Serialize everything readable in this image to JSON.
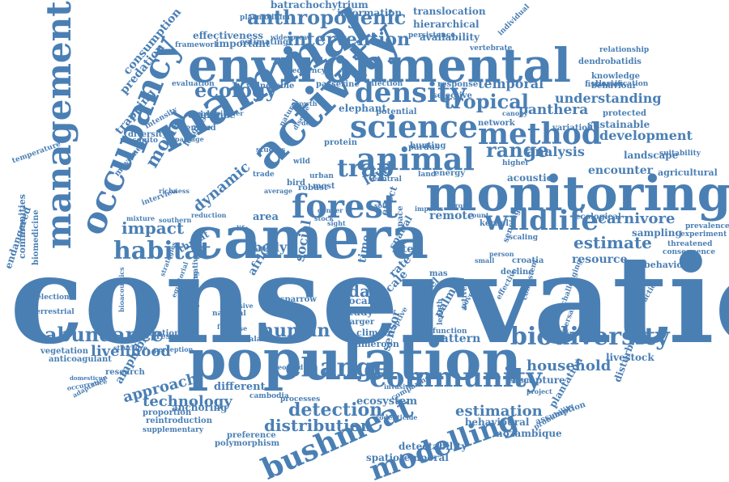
{
  "wordcloud": {
    "color": "#4a7fb4",
    "background": "#ffffff",
    "words": [
      "conservation",
      "population",
      "camera",
      "monitoring",
      "environmental",
      "mammal",
      "activity",
      "occupancy",
      "management",
      "forest",
      "animal",
      "science",
      "method",
      "wildlife",
      "density",
      "community",
      "bushmeat",
      "modelling",
      "change",
      "biodiversity",
      "habitat",
      "abundance",
      "human",
      "detection",
      "distribution",
      "anthropogenic",
      "intervention",
      "ecology",
      "tropical",
      "range",
      "trap",
      "impact",
      "model",
      "estimate",
      "data",
      "household",
      "livelihood",
      "approach",
      "technology",
      "carnivore",
      "development",
      "understanding",
      "panthera",
      "temporal",
      "analysis",
      "estimation",
      "resource",
      "encounter",
      "pattern",
      "sampling",
      "landscape",
      "sustainable",
      "consumption",
      "predation",
      "trapping",
      "effectiveness",
      "availability",
      "hierarchical",
      "translocation",
      "information",
      "batrachochytrium",
      "dendrobatidis",
      "knowledge",
      "behaviour",
      "mozambique",
      "detectability",
      "spatiotemporal",
      "polymorphism",
      "preference",
      "reintroduction",
      "supplementary",
      "amphibian",
      "anchoring",
      "proportion",
      "research",
      "vegetation",
      "anticoagulant",
      "occurrence",
      "adaptation",
      "endangered",
      "terrestrial",
      "communities",
      "biomedicine",
      "temperature",
      "selection",
      "ecosystem",
      "climate",
      "cameroon",
      "recapture",
      "livestock",
      "plantation",
      "disturbance",
      "assumption",
      "probability",
      "behavioural",
      "different",
      "dynamic",
      "threat",
      "social",
      "body",
      "area",
      "space",
      "site",
      "scale",
      "level",
      "rate",
      "local",
      "larger",
      "study",
      "sparrow",
      "africa",
      "remote",
      "protein",
      "pardus",
      "network",
      "variation",
      "protected",
      "suitability",
      "agricultural",
      "prevalence",
      "experiment",
      "consequence",
      "behavior",
      "threatened",
      "fisheries",
      "classification",
      "relationship",
      "individual",
      "vertebrate",
      "persistence",
      "plasmodium",
      "frequency",
      "important",
      "estimating",
      "framework",
      "widespread",
      "evaluation",
      "vulnerable",
      "passerine",
      "infection",
      "response",
      "selective",
      "potential",
      "elephant",
      "evidence",
      "demand",
      "mosquito",
      "diversity",
      "movement",
      "intensity",
      "logging",
      "sensor",
      "spatial",
      "acoustic",
      "higher",
      "energy",
      "land",
      "hunting",
      "central",
      "urban",
      "wild",
      "bird",
      "robust",
      "most",
      "trade",
      "studies",
      "natural",
      "disease",
      "sensing",
      "decline",
      "croatia",
      "kernel",
      "ecological",
      "interaction",
      "densities",
      "dispersal",
      "effective",
      "consistent",
      "challenging",
      "poverty",
      "function",
      "length",
      "captive",
      "national",
      "passive",
      "planning",
      "malaria",
      "protection",
      "pressure",
      "structure",
      "perception",
      "domesticus",
      "bioacoustics",
      "alternative",
      "equatorial",
      "strategies",
      "cambodia",
      "processes",
      "comparing",
      "rodenticide",
      "scaling",
      "person",
      "active",
      "mas",
      "time",
      "effect",
      "travel",
      "palm",
      "mores",
      "spillover",
      "passage",
      "average",
      "mixture",
      "southern",
      "richness",
      "interview",
      "reduction",
      "growth",
      "mouse",
      "leopard",
      "food",
      "invasive",
      "stock",
      "life",
      "index",
      "gender",
      "sight",
      "group",
      "count",
      "small",
      "deer",
      "soil",
      "impacts",
      "status",
      "project",
      "canopy",
      "home",
      "region",
      "poaching"
    ]
  }
}
